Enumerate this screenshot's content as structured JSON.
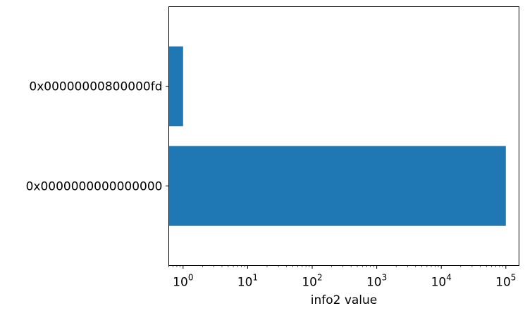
{
  "chart_data": {
    "type": "bar",
    "orientation": "horizontal",
    "categories": [
      "0x0000000000000000",
      "0x00000000800000fd"
    ],
    "values": [
      100000,
      1
    ],
    "xlabel": "info2 value",
    "ylabel": "",
    "title": "",
    "xscale": "log",
    "xlim": [
      0.6,
      160000
    ],
    "xticks": [
      1,
      10,
      100,
      1000,
      10000,
      100000
    ],
    "xtick_labels": [
      {
        "base": "10",
        "exp": "0"
      },
      {
        "base": "10",
        "exp": "1"
      },
      {
        "base": "10",
        "exp": "2"
      },
      {
        "base": "10",
        "exp": "3"
      },
      {
        "base": "10",
        "exp": "4"
      },
      {
        "base": "10",
        "exp": "5"
      }
    ],
    "bar_color": "#1f77b4",
    "grid": false,
    "legend": "none"
  }
}
